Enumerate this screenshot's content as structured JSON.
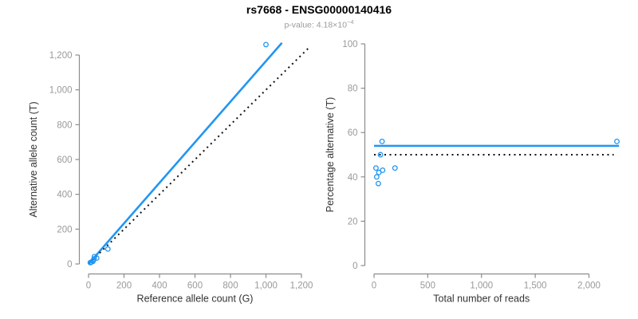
{
  "header": {
    "title": "rs7668 - ENSG00000140416",
    "pvalue_prefix": "p-value: 4.18×10",
    "pvalue_exponent": "−4"
  },
  "colors": {
    "accent_blue": "#2196f3",
    "axis_gray": "#8c8c8c",
    "tick_label_gray": "#999999",
    "axis_label_dark": "#333333",
    "dotted_black": "#111111"
  },
  "chart_data": [
    {
      "type": "scatter",
      "name": "allele-counts",
      "xlabel": "Reference allele count (G)",
      "ylabel": "Alternative allele count (T)",
      "xlim": [
        0,
        1200
      ],
      "ylim": [
        0,
        1200
      ],
      "x_tick_values": [
        0,
        200,
        400,
        600,
        800,
        1000,
        1200
      ],
      "x_tick_labels": [
        "0",
        "200",
        "400",
        "600",
        "800",
        "1,000",
        "1,200"
      ],
      "y_tick_values": [
        0,
        200,
        400,
        600,
        800,
        1000,
        1200
      ],
      "y_tick_labels": [
        "0",
        "200",
        "400",
        "600",
        "800",
        "1,000",
        "1,200"
      ],
      "grid": false,
      "legend": "none",
      "points": [
        [
          33,
          42
        ],
        [
          31,
          29
        ],
        [
          10,
          8
        ],
        [
          46,
          34
        ],
        [
          26,
          19
        ],
        [
          109,
          86
        ],
        [
          15,
          10
        ],
        [
          25,
          15
        ],
        [
          1000,
          1260
        ]
      ],
      "lines": [
        {
          "name": "fit-line",
          "style": "solid",
          "color": "blue",
          "from": [
            0,
            0
          ],
          "to": [
            1090,
            1270
          ]
        },
        {
          "name": "identity-line",
          "style": "dotted",
          "color": "black",
          "from": [
            0,
            0
          ],
          "to": [
            1245,
            1245
          ]
        }
      ]
    },
    {
      "type": "scatter",
      "name": "percentage-vs-reads",
      "xlabel": "Total number of reads",
      "ylabel": "Percentage alternative (T)",
      "xlim": [
        0,
        2000
      ],
      "ylim": [
        0,
        100
      ],
      "x_tick_values": [
        0,
        500,
        1000,
        1500,
        2000
      ],
      "x_tick_labels": [
        "0",
        "500",
        "1,000",
        "1,500",
        "2,000"
      ],
      "y_tick_values": [
        0,
        20,
        40,
        60,
        80,
        100
      ],
      "y_tick_labels": [
        "0",
        "20",
        "40",
        "60",
        "80",
        "100"
      ],
      "grid": false,
      "legend": "none",
      "points": [
        [
          75,
          56
        ],
        [
          60,
          50
        ],
        [
          18,
          44
        ],
        [
          80,
          43
        ],
        [
          45,
          42
        ],
        [
          195,
          44
        ],
        [
          25,
          40
        ],
        [
          40,
          37
        ],
        [
          2260,
          56
        ]
      ],
      "lines": [
        {
          "name": "fitted-percentage-line",
          "style": "solid",
          "color": "blue",
          "from": [
            0,
            54
          ],
          "to": [
            2280,
            54
          ]
        },
        {
          "name": "expected-50pct-line",
          "style": "dotted",
          "color": "black",
          "from": [
            0,
            50
          ],
          "to": [
            2230,
            50
          ]
        }
      ]
    }
  ]
}
